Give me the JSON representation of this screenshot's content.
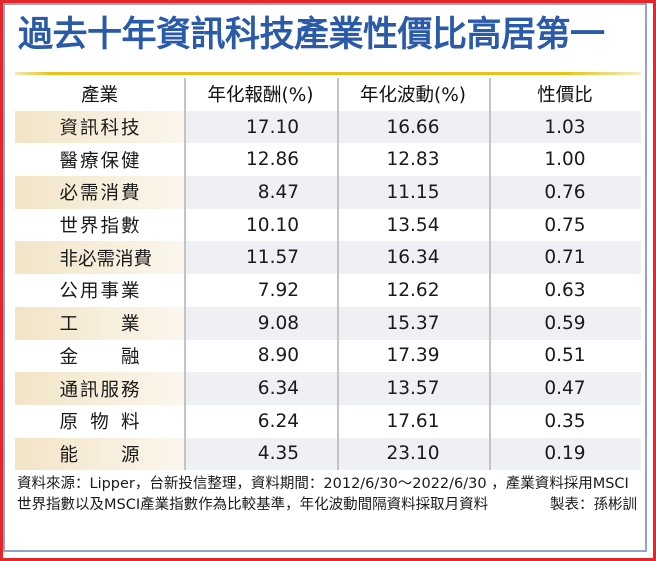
{
  "title": "過去十年資訊科技產業性價比高居第一",
  "colors": {
    "title": "#2a5aa8",
    "outer_border": "#e3262a",
    "inner_border": "#8ea4c8",
    "gold_rule": "#e6c21a",
    "band_first_col": "#f2e4c6",
    "band_other_cols": "#eef0f4"
  },
  "table": {
    "headers": [
      "產業",
      "年化報酬(%)",
      "年化波動(%)",
      "性價比"
    ],
    "rows": [
      {
        "industry": "資訊科技",
        "annual_return": "17.10",
        "annual_volatility": "16.66",
        "ratio": "1.03"
      },
      {
        "industry": "醫療保健",
        "annual_return": "12.86",
        "annual_volatility": "12.83",
        "ratio": "1.00"
      },
      {
        "industry": "必需消費",
        "annual_return": "8.47",
        "annual_volatility": "11.15",
        "ratio": "0.76"
      },
      {
        "industry": "世界指數",
        "annual_return": "10.10",
        "annual_volatility": "13.54",
        "ratio": "0.75"
      },
      {
        "industry": "非必需消費",
        "annual_return": "11.57",
        "annual_volatility": "16.34",
        "ratio": "0.71"
      },
      {
        "industry": "公用事業",
        "annual_return": "7.92",
        "annual_volatility": "12.62",
        "ratio": "0.63"
      },
      {
        "industry": "工業",
        "annual_return": "9.08",
        "annual_volatility": "15.37",
        "ratio": "0.59"
      },
      {
        "industry": "金融",
        "annual_return": "8.90",
        "annual_volatility": "17.39",
        "ratio": "0.51"
      },
      {
        "industry": "通訊服務",
        "annual_return": "6.34",
        "annual_volatility": "13.57",
        "ratio": "0.47"
      },
      {
        "industry": "原物料",
        "annual_return": "6.24",
        "annual_volatility": "17.61",
        "ratio": "0.35"
      },
      {
        "industry": "能源",
        "annual_return": "4.35",
        "annual_volatility": "23.10",
        "ratio": "0.19"
      }
    ]
  },
  "footnote": {
    "source": "資料來源：Lipper，台新投信整理，資料期間：2012/6/30～2022/6/30 ，產業資料採用MSCI世界指數以及MSCI產業指數作為比較基準，年化波動間隔資料採取月資料",
    "credit": "製表：孫彬訓"
  }
}
